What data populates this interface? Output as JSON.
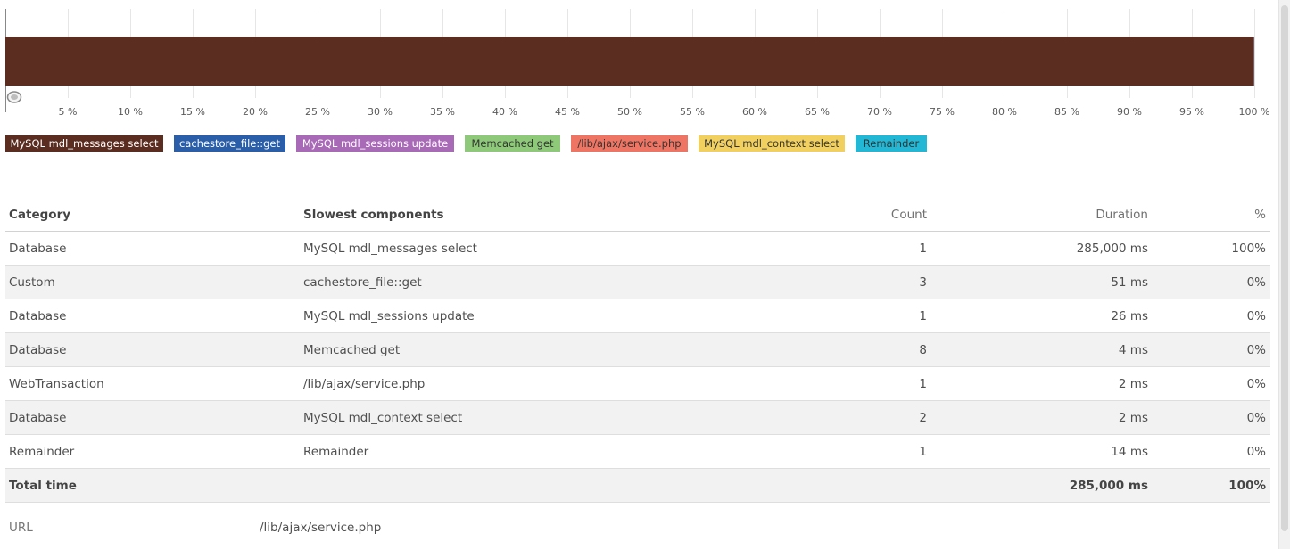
{
  "chart_data": {
    "type": "bar",
    "orientation": "horizontal-stacked",
    "x_ticks": [
      "5 %",
      "10 %",
      "15 %",
      "20 %",
      "25 %",
      "30 %",
      "35 %",
      "40 %",
      "45 %",
      "50 %",
      "55 %",
      "60 %",
      "65 %",
      "70 %",
      "75 %",
      "80 %",
      "85 %",
      "90 %",
      "95 %",
      "100 %"
    ],
    "xlim": [
      0,
      100
    ],
    "grid": true,
    "series": [
      {
        "name": "MySQL mdl_messages select",
        "value": 99.97,
        "color": "#5a2d20"
      },
      {
        "name": "cachestore_file::get",
        "value": 0.018,
        "color": "#2b5ea8"
      },
      {
        "name": "MySQL mdl_sessions update",
        "value": 0.009,
        "color": "#a869b7"
      },
      {
        "name": "Memcached get",
        "value": 0.001,
        "color": "#8ec97a"
      },
      {
        "name": "/lib/ajax/service.php",
        "value": 0.001,
        "color": "#ee7563"
      },
      {
        "name": "MySQL mdl_context select",
        "value": 0.001,
        "color": "#f2d060"
      },
      {
        "name": "Remainder",
        "value": 0.005,
        "color": "#22b7d4"
      }
    ]
  },
  "legend": [
    {
      "label": "MySQL mdl_messages select",
      "bg": "#5a2d20",
      "fg": "#ffffff"
    },
    {
      "label": "cachestore_file::get",
      "bg": "#2b5ea8",
      "fg": "#ffffff"
    },
    {
      "label": "MySQL mdl_sessions update",
      "bg": "#a869b7",
      "fg": "#ffffff"
    },
    {
      "label": "Memcached get",
      "bg": "#8ec97a",
      "fg": "#333333"
    },
    {
      "label": "/lib/ajax/service.php",
      "bg": "#ee7563",
      "fg": "#333333"
    },
    {
      "label": "MySQL mdl_context select",
      "bg": "#f2d060",
      "fg": "#333333"
    },
    {
      "label": "Remainder",
      "bg": "#22b7d4",
      "fg": "#333333"
    }
  ],
  "table": {
    "headers": {
      "category": "Category",
      "components": "Slowest components",
      "count": "Count",
      "duration": "Duration",
      "percent": "%"
    },
    "rows": [
      {
        "category": "Database",
        "component": "MySQL mdl_messages select",
        "count": "1",
        "duration": "285,000 ms",
        "percent": "100%"
      },
      {
        "category": "Custom",
        "component": "cachestore_file::get",
        "count": "3",
        "duration": "51 ms",
        "percent": "0%"
      },
      {
        "category": "Database",
        "component": "MySQL mdl_sessions update",
        "count": "1",
        "duration": "26 ms",
        "percent": "0%"
      },
      {
        "category": "Database",
        "component": "Memcached get",
        "count": "8",
        "duration": "4 ms",
        "percent": "0%"
      },
      {
        "category": "WebTransaction",
        "component": "/lib/ajax/service.php",
        "count": "1",
        "duration": "2 ms",
        "percent": "0%"
      },
      {
        "category": "Database",
        "component": "MySQL mdl_context select",
        "count": "2",
        "duration": "2 ms",
        "percent": "0%"
      },
      {
        "category": "Remainder",
        "component": "Remainder",
        "count": "1",
        "duration": "14 ms",
        "percent": "0%"
      }
    ],
    "total": {
      "label": "Total time",
      "duration": "285,000 ms",
      "percent": "100%"
    }
  },
  "url": {
    "label": "URL",
    "value": "/lib/ajax/service.php"
  }
}
